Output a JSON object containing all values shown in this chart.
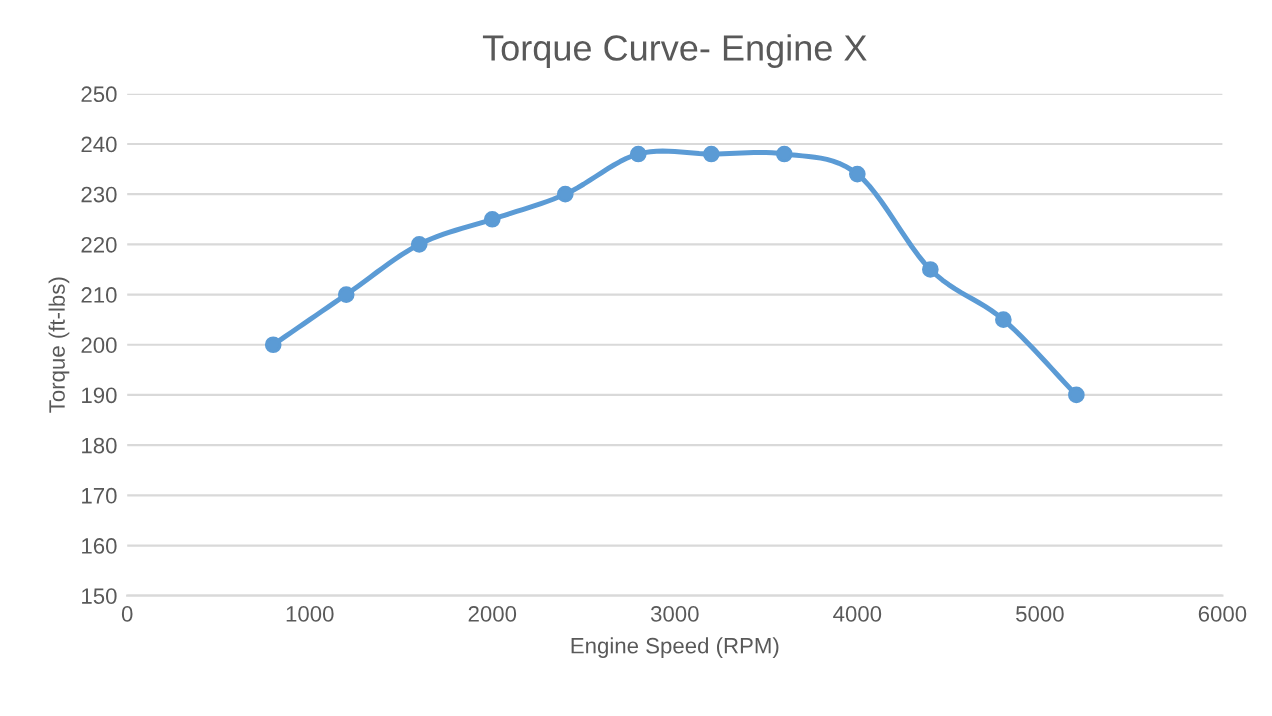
{
  "chart_data": {
    "type": "line",
    "title": "Torque Curve- Engine X",
    "xlabel": "Engine Speed (RPM)",
    "ylabel": "Torque (ft-lbs)",
    "x": [
      800,
      1200,
      1600,
      2000,
      2400,
      2800,
      3200,
      3600,
      4000,
      4400,
      4800,
      5200
    ],
    "series": [
      {
        "color": "#5b9bd5",
        "values": [
          200,
          210,
          220,
          225,
          230,
          238,
          238,
          238,
          234,
          215,
          205,
          190
        ]
      }
    ],
    "xlim": [
      0,
      6000
    ],
    "xticks": [
      0,
      1000,
      2000,
      3000,
      4000,
      5000,
      6000
    ],
    "ylim": [
      150,
      250
    ],
    "yticks": [
      150,
      160,
      170,
      180,
      190,
      200,
      210,
      220,
      230,
      240,
      250
    ],
    "grid": "y",
    "marker": "circle",
    "line_style": "solid",
    "legend": false
  }
}
